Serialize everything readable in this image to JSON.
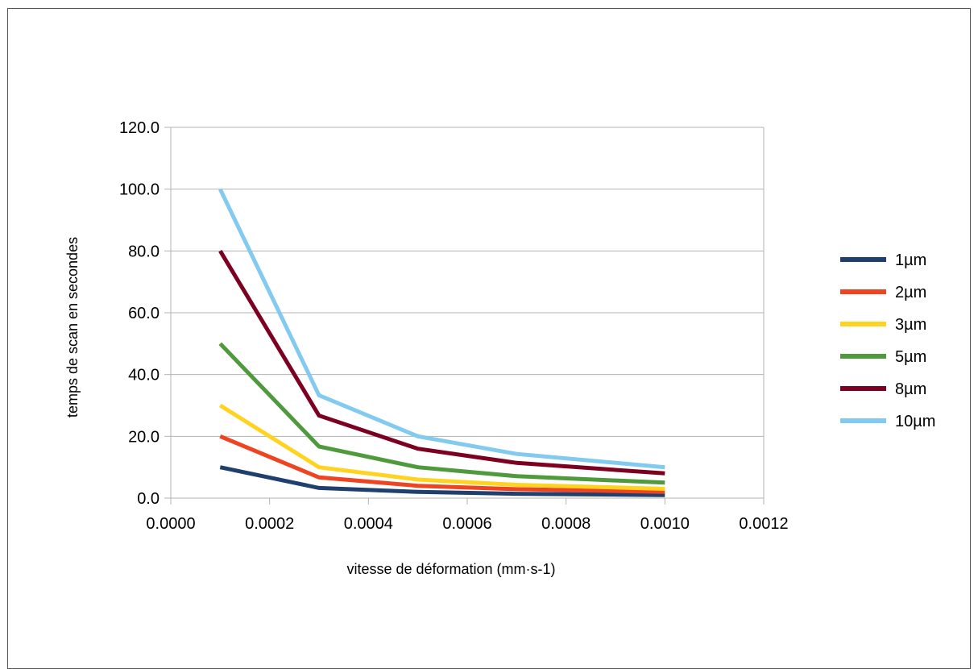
{
  "chart_data": {
    "type": "line",
    "title": "",
    "xlabel": "vitesse de déformation (mm·s-1)",
    "ylabel": "temps de scan en secondes",
    "xlim": [
      0,
      0.0012
    ],
    "ylim": [
      0,
      120
    ],
    "x_ticks": [
      "0.0000",
      "0.0002",
      "0.0004",
      "0.0006",
      "0.0008",
      "0.0010",
      "0.0012"
    ],
    "y_ticks": [
      "0.0",
      "20.0",
      "40.0",
      "60.0",
      "80.0",
      "100.0",
      "120.0"
    ],
    "grid": "horizontal",
    "legend_position": "right",
    "x": [
      0.0001,
      0.0003,
      0.0005,
      0.0007,
      0.001
    ],
    "series": [
      {
        "name": "1µm",
        "color": "#1f3f6e",
        "values": [
          10,
          3.3,
          2.0,
          1.4,
          1.0
        ]
      },
      {
        "name": "2µm",
        "color": "#ee4422",
        "values": [
          20,
          6.7,
          4.0,
          2.9,
          2.0
        ]
      },
      {
        "name": "3µm",
        "color": "#ffd320",
        "values": [
          30,
          10.0,
          6.0,
          4.3,
          3.0
        ]
      },
      {
        "name": "5µm",
        "color": "#4e9a3c",
        "values": [
          50,
          16.7,
          10.0,
          7.1,
          5.0
        ]
      },
      {
        "name": "8µm",
        "color": "#7e0021",
        "values": [
          80,
          26.7,
          16.0,
          11.4,
          8.0
        ]
      },
      {
        "name": "10µm",
        "color": "#83caf0",
        "values": [
          100,
          33.3,
          20.0,
          14.3,
          10.0
        ]
      }
    ]
  }
}
